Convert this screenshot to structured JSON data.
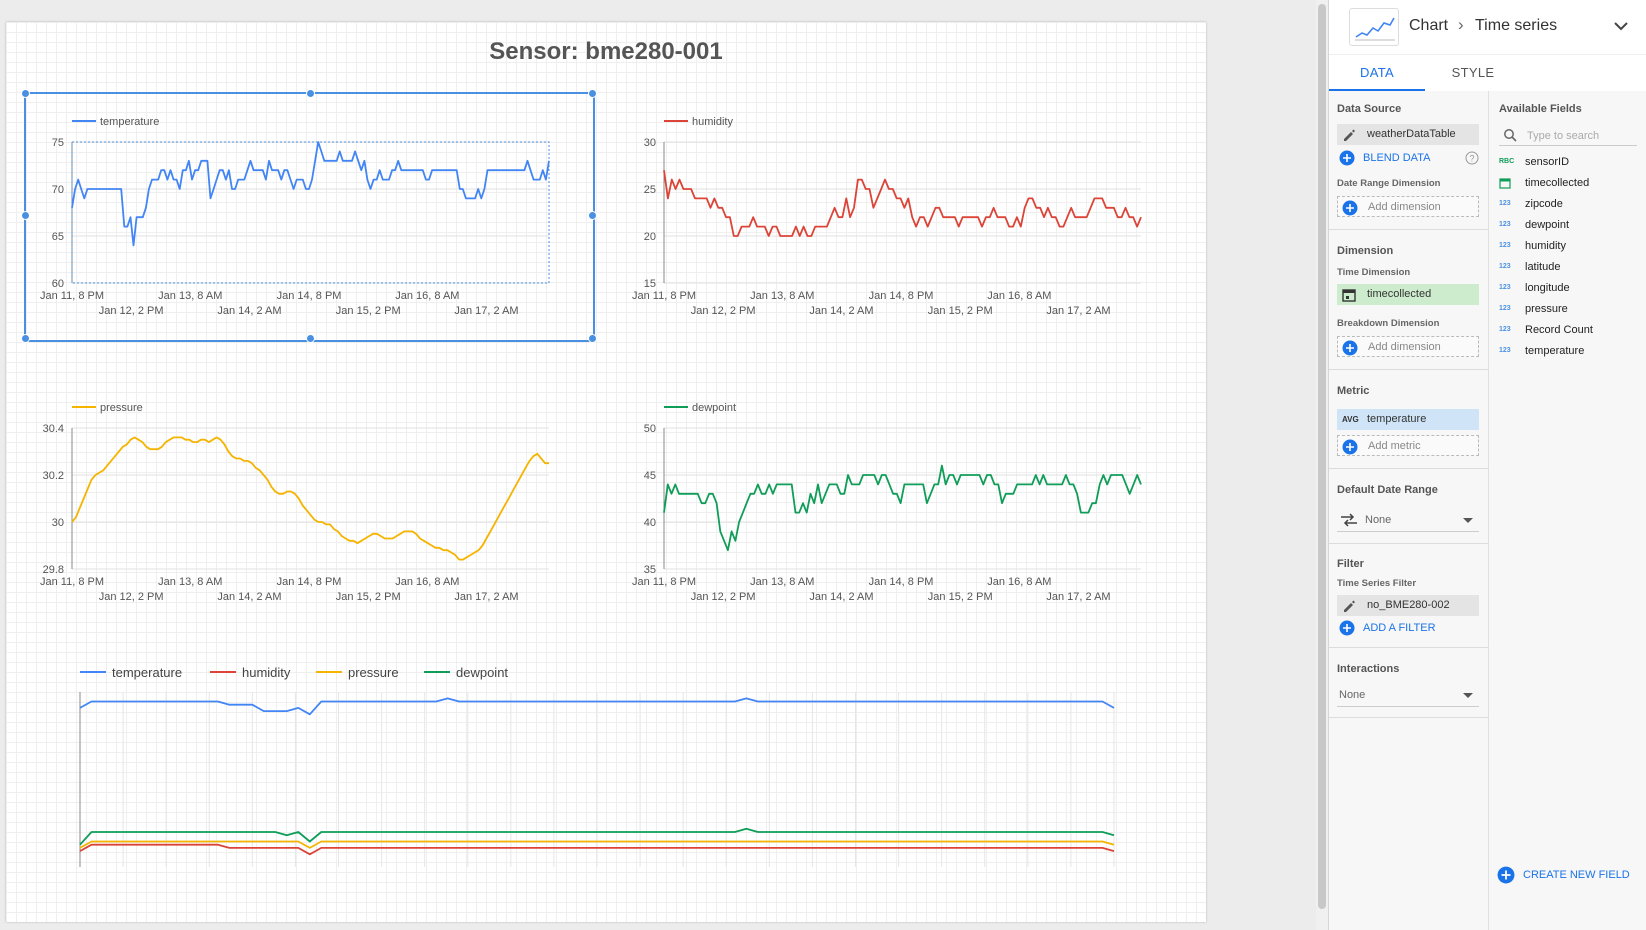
{
  "report": {
    "title": "Sensor: bme280-001"
  },
  "colors": {
    "temperature": "#4285f4",
    "humidity": "#db4437",
    "pressure": "#f4b400",
    "dewpoint": "#0f9d58",
    "accent": "#1a73e8"
  },
  "x_axis_labels": {
    "top_row": [
      "Jan 11, 8 PM",
      "Jan 13, 8 AM",
      "Jan 14, 8 PM",
      "Jan 16, 8 AM"
    ],
    "bottom_row": [
      "Jan 12, 2 PM",
      "Jan 14, 2 AM",
      "Jan 15, 2 PM",
      "Jan 17, 2 AM"
    ]
  },
  "chart_data": [
    {
      "type": "line",
      "legend": [
        "temperature"
      ],
      "ylim": [
        60,
        75
      ],
      "yticks": [
        "60",
        "65",
        "70",
        "75"
      ],
      "series": [
        {
          "name": "temperature",
          "values": [
            68,
            70,
            71,
            70,
            69,
            70,
            70,
            70,
            70,
            70,
            70,
            70,
            70,
            70,
            70,
            70,
            70,
            66,
            66,
            67,
            64,
            67,
            67,
            67,
            68,
            70,
            71,
            71,
            71,
            72,
            72,
            71,
            72,
            71,
            71,
            70,
            72,
            72,
            73,
            71,
            72,
            72,
            73,
            73,
            73,
            69,
            70,
            71,
            72,
            72,
            71,
            72,
            70,
            70,
            71,
            71,
            71,
            72,
            73,
            72,
            72,
            72,
            72,
            71,
            73,
            72,
            72,
            72,
            71,
            72,
            72,
            71,
            70,
            71,
            71,
            71,
            70,
            70,
            71,
            73,
            75,
            74,
            73,
            73,
            73,
            73,
            73,
            74,
            73,
            73,
            73,
            73,
            74,
            73,
            72,
            73,
            71,
            70,
            71,
            71,
            72,
            71,
            71,
            71,
            72,
            72,
            73,
            72,
            72,
            72,
            72,
            72,
            72,
            72,
            72,
            71,
            71,
            72,
            72,
            72,
            72,
            72,
            72,
            72,
            72,
            72,
            70,
            70,
            69,
            69,
            69,
            69,
            70,
            69,
            70,
            72,
            72,
            72,
            72,
            72,
            72,
            72,
            72,
            72,
            72,
            72,
            72,
            72,
            73,
            72,
            71,
            71,
            71,
            72,
            71,
            73
          ]
        }
      ]
    },
    {
      "type": "line",
      "legend": [
        "humidity"
      ],
      "ylim": [
        15,
        30
      ],
      "yticks": [
        "15",
        "20",
        "25",
        "30"
      ],
      "series": [
        {
          "name": "humidity",
          "values": [
            27,
            24,
            26,
            25,
            26,
            25,
            25,
            25,
            24,
            24,
            24,
            24,
            23,
            24,
            23,
            23,
            22,
            22,
            20,
            20,
            21,
            21,
            21,
            22,
            21,
            21,
            21,
            20,
            21,
            21,
            20,
            20,
            20,
            20,
            21,
            20,
            21,
            20,
            20,
            21,
            21,
            21,
            21,
            22,
            23,
            22,
            22,
            24,
            22,
            23,
            26,
            26,
            25,
            25,
            23,
            24,
            25,
            26,
            25,
            25,
            24,
            24,
            23,
            24,
            22,
            21,
            22,
            22,
            21,
            22,
            23,
            23,
            22,
            22,
            22,
            22,
            21,
            22,
            22,
            22,
            22,
            22,
            21,
            22,
            22,
            23,
            22,
            22,
            22,
            21,
            21,
            22,
            21,
            23,
            24,
            24,
            23,
            23,
            22,
            23,
            22,
            22,
            21,
            21,
            22,
            23,
            22,
            22,
            22,
            22,
            23,
            24,
            24,
            24,
            23,
            23,
            23,
            22,
            22,
            23,
            22,
            22,
            21,
            22
          ]
        }
      ]
    },
    {
      "type": "line",
      "legend": [
        "pressure"
      ],
      "ylim": [
        29.8,
        30.4
      ],
      "yticks": [
        "29.8",
        "30",
        "30.2",
        "30.4"
      ],
      "series": [
        {
          "name": "pressure",
          "values": [
            30.0,
            30.02,
            30.06,
            30.1,
            30.14,
            30.18,
            30.2,
            30.21,
            30.22,
            30.24,
            30.26,
            30.28,
            30.3,
            30.32,
            30.33,
            30.35,
            30.36,
            30.35,
            30.34,
            30.32,
            30.31,
            30.31,
            30.31,
            30.32,
            30.34,
            30.35,
            30.36,
            30.36,
            30.36,
            30.35,
            30.35,
            30.34,
            30.34,
            30.35,
            30.35,
            30.34,
            30.35,
            30.36,
            30.35,
            30.33,
            30.3,
            30.28,
            30.27,
            30.27,
            30.26,
            30.26,
            30.25,
            30.23,
            30.22,
            30.2,
            30.18,
            30.15,
            30.13,
            30.12,
            30.12,
            30.13,
            30.13,
            30.12,
            30.1,
            30.07,
            30.05,
            30.03,
            30.01,
            30.0,
            30.0,
            29.99,
            29.99,
            29.97,
            29.96,
            29.94,
            29.93,
            29.92,
            29.92,
            29.91,
            29.92,
            29.93,
            29.94,
            29.95,
            29.95,
            29.94,
            29.93,
            29.93,
            29.93,
            29.94,
            29.95,
            29.96,
            29.96,
            29.96,
            29.95,
            29.93,
            29.92,
            29.91,
            29.9,
            29.89,
            29.89,
            29.88,
            29.88,
            29.87,
            29.86,
            29.84,
            29.84,
            29.85,
            29.86,
            29.87,
            29.88,
            29.9,
            29.93,
            29.96,
            29.99,
            30.02,
            30.05,
            30.08,
            30.11,
            30.14,
            30.17,
            30.2,
            30.23,
            30.26,
            30.28,
            30.29,
            30.27,
            30.25,
            30.25
          ]
        }
      ]
    },
    {
      "type": "line",
      "legend": [
        "dewpoint"
      ],
      "ylim": [
        35,
        50
      ],
      "yticks": [
        "35",
        "40",
        "45",
        "50"
      ],
      "series": [
        {
          "name": "dewpoint",
          "values": [
            41,
            44,
            43,
            44,
            43,
            43,
            43,
            43,
            43,
            43,
            42,
            42,
            43,
            43,
            42,
            39,
            38,
            37,
            39,
            38,
            40,
            41,
            42,
            43,
            43,
            44,
            43,
            43,
            44,
            43,
            44,
            44,
            44,
            44,
            44,
            41,
            41,
            42,
            41,
            43,
            42,
            44,
            42,
            43,
            44,
            44,
            44,
            43,
            43,
            45,
            44,
            44,
            44,
            45,
            45,
            45,
            45,
            44,
            45,
            45,
            44,
            43,
            43,
            42,
            44,
            44,
            44,
            44,
            44,
            44,
            42,
            43,
            44,
            44,
            46,
            44,
            45,
            45,
            44,
            45,
            45,
            45,
            45,
            45,
            45,
            44,
            45,
            45,
            44,
            44,
            42,
            43,
            43,
            43,
            44,
            44,
            44,
            44,
            44,
            45,
            44,
            45,
            44,
            44,
            44,
            44,
            44,
            45,
            44,
            44,
            43,
            41,
            41,
            41,
            42,
            42,
            44,
            45,
            44,
            45,
            45,
            45,
            45,
            44,
            43,
            44,
            45,
            44
          ]
        }
      ]
    },
    {
      "type": "line",
      "legend": [
        "temperature",
        "humidity",
        "pressure",
        "dewpoint"
      ],
      "series": [
        {
          "name": "temperature",
          "values": [
            70,
            72,
            72,
            72,
            72,
            72,
            72,
            72,
            72,
            72,
            72,
            72,
            72,
            71,
            71,
            71,
            69,
            69,
            69,
            70,
            68,
            72,
            72,
            72,
            72,
            72,
            72,
            72,
            72,
            72,
            72,
            72,
            73,
            72,
            72,
            72,
            72,
            72,
            72,
            72,
            72,
            72,
            72,
            72,
            72,
            72,
            72,
            72,
            72,
            72,
            72,
            72,
            72,
            72,
            72,
            72,
            72,
            72,
            73,
            72,
            72,
            72,
            72,
            72,
            72,
            72,
            72,
            72,
            72,
            72,
            72,
            72,
            72,
            72,
            72,
            72,
            72,
            72,
            72,
            72,
            72,
            72,
            72,
            72,
            72,
            72,
            72,
            72,
            72,
            72,
            70
          ]
        },
        {
          "name": "humidity",
          "values": [
            25,
            27,
            27,
            27,
            27,
            27,
            27,
            27,
            27,
            27,
            27,
            27,
            27,
            26,
            26,
            26,
            26,
            26,
            26,
            26,
            24,
            26,
            26,
            26,
            26,
            26,
            26,
            26,
            26,
            26,
            26,
            26,
            26,
            26,
            26,
            26,
            26,
            26,
            26,
            26,
            26,
            26,
            26,
            26,
            26,
            26,
            26,
            26,
            26,
            26,
            26,
            26,
            26,
            26,
            26,
            26,
            26,
            26,
            26,
            26,
            26,
            26,
            26,
            26,
            26,
            26,
            26,
            26,
            26,
            26,
            26,
            26,
            26,
            26,
            26,
            26,
            26,
            26,
            26,
            26,
            26,
            26,
            26,
            26,
            26,
            26,
            26,
            26,
            26,
            26,
            25
          ]
        },
        {
          "name": "pressure",
          "values": [
            26,
            28,
            28,
            28,
            28,
            28,
            28,
            28,
            28,
            28,
            28,
            28,
            28,
            28,
            28,
            28,
            28,
            28,
            28,
            28,
            26,
            28,
            28,
            28,
            28,
            28,
            28,
            28,
            28,
            28,
            28,
            28,
            28,
            28,
            28,
            28,
            28,
            28,
            28,
            28,
            28,
            28,
            28,
            28,
            28,
            28,
            28,
            28,
            28,
            28,
            28,
            28,
            28,
            28,
            28,
            28,
            28,
            28,
            28,
            28,
            28,
            28,
            28,
            28,
            28,
            28,
            28,
            28,
            28,
            28,
            28,
            28,
            28,
            28,
            28,
            28,
            28,
            28,
            28,
            28,
            28,
            28,
            28,
            28,
            28,
            28,
            28,
            28,
            28,
            28,
            27
          ]
        },
        {
          "name": "dewpoint",
          "values": [
            27,
            31,
            31,
            31,
            31,
            31,
            31,
            31,
            31,
            31,
            31,
            31,
            31,
            31,
            31,
            31,
            31,
            31,
            30,
            31,
            28,
            31,
            31,
            31,
            31,
            31,
            31,
            31,
            31,
            31,
            31,
            31,
            31,
            31,
            31,
            31,
            31,
            31,
            31,
            31,
            31,
            31,
            31,
            31,
            31,
            31,
            31,
            31,
            31,
            31,
            31,
            31,
            31,
            31,
            31,
            31,
            31,
            31,
            32,
            31,
            31,
            31,
            31,
            31,
            31,
            31,
            31,
            31,
            31,
            31,
            31,
            31,
            31,
            31,
            31,
            31,
            31,
            31,
            31,
            31,
            31,
            31,
            31,
            31,
            31,
            31,
            31,
            31,
            31,
            31,
            30
          ]
        }
      ]
    }
  ],
  "panel": {
    "breadcrumb_chart": "Chart",
    "breadcrumb_type": "Time series",
    "tabs": {
      "data": "DATA",
      "style": "STYLE"
    },
    "data_source": {
      "title": "Data Source",
      "name": "weatherDataTable",
      "blend_label": "BLEND DATA"
    },
    "date_range_dimension": {
      "title": "Date Range Dimension",
      "add_label": "Add dimension"
    },
    "dimension": {
      "title": "Dimension",
      "time_title": "Time Dimension",
      "time_field": "timecollected",
      "breakdown_title": "Breakdown Dimension",
      "add_label": "Add dimension"
    },
    "metric": {
      "title": "Metric",
      "agg": "AVG",
      "field": "temperature",
      "add_label": "Add metric"
    },
    "default_date_range": {
      "title": "Default Date Range",
      "value": "None"
    },
    "filter": {
      "title": "Filter",
      "sub_title": "Time Series Filter",
      "value": "no_BME280-002",
      "add_label": "ADD A FILTER"
    },
    "interactions": {
      "title": "Interactions",
      "value": "None"
    },
    "available_fields": {
      "title": "Available Fields",
      "search_placeholder": "Type to search",
      "fields": [
        {
          "type": "RBC",
          "name": "sensorID"
        },
        {
          "type": "cal",
          "name": "timecollected"
        },
        {
          "type": "123",
          "name": "zipcode"
        },
        {
          "type": "123",
          "name": "dewpoint"
        },
        {
          "type": "123",
          "name": "humidity"
        },
        {
          "type": "123",
          "name": "latitude"
        },
        {
          "type": "123",
          "name": "longitude"
        },
        {
          "type": "123",
          "name": "pressure"
        },
        {
          "type": "123",
          "name": "Record Count"
        },
        {
          "type": "123",
          "name": "temperature"
        }
      ],
      "create_label": "CREATE NEW FIELD"
    }
  }
}
